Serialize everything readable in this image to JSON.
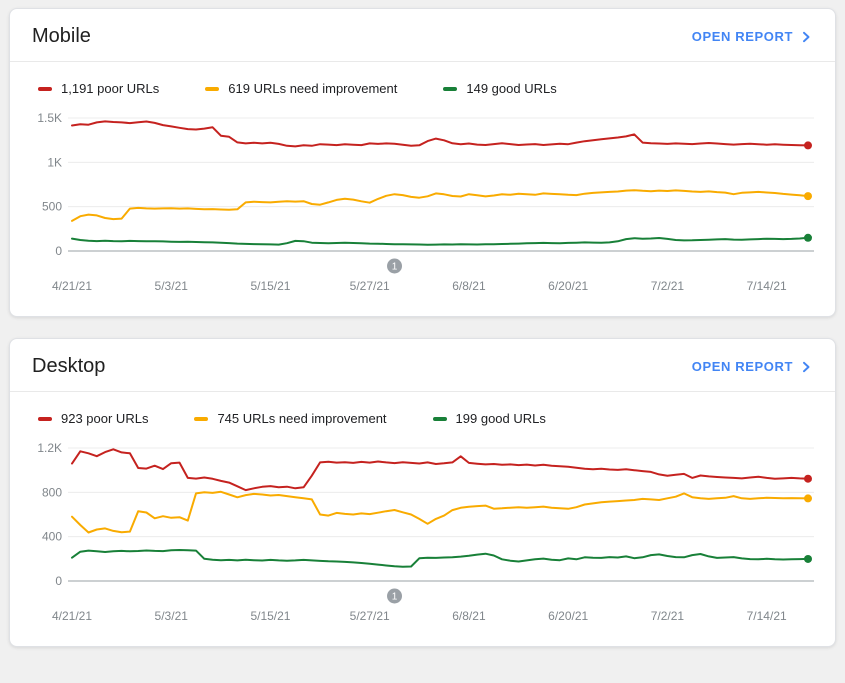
{
  "page": {
    "background": "#f0f0f0",
    "card_background": "#ffffff"
  },
  "colors": {
    "poor": "#c5221f",
    "needs_improvement": "#f9ab00",
    "good": "#188038",
    "link": "#4285f4",
    "axis_text": "#80868b",
    "gridline": "#ececec",
    "zero_line": "#9aa0a6",
    "badge": "#9aa0a6"
  },
  "cards": [
    {
      "title": "Mobile",
      "open_report_label": "OPEN REPORT",
      "legend": [
        {
          "label": "1,191 poor URLs",
          "color": "#c5221f"
        },
        {
          "label": "619 URLs need improvement",
          "color": "#f9ab00"
        },
        {
          "label": "149 good URLs",
          "color": "#188038"
        }
      ],
      "chart_data": {
        "type": "line",
        "x_start_date": "4/21/21",
        "x_end_date": "7/19/21",
        "x_ticks": [
          {
            "index": 0,
            "label": "4/21/21"
          },
          {
            "index": 12,
            "label": "5/3/21"
          },
          {
            "index": 24,
            "label": "5/15/21"
          },
          {
            "index": 36,
            "label": "5/27/21"
          },
          {
            "index": 48,
            "label": "6/8/21"
          },
          {
            "index": 60,
            "label": "6/20/21"
          },
          {
            "index": 72,
            "label": "7/2/21"
          },
          {
            "index": 84,
            "label": "7/14/21"
          }
        ],
        "y_ticks": [
          {
            "value": 1500,
            "label": "1.5K"
          },
          {
            "value": 1000,
            "label": "1K"
          },
          {
            "value": 500,
            "label": "500"
          },
          {
            "value": 0,
            "label": "0"
          }
        ],
        "ylim": [
          0,
          1500
        ],
        "grid": true,
        "annotation": {
          "index": 39,
          "label": "1"
        },
        "series": [
          {
            "name": "poor URLs",
            "current": 1191,
            "color": "#c5221f",
            "values": [
              1415,
              1430,
              1425,
              1450,
              1462,
              1455,
              1450,
              1443,
              1452,
              1460,
              1445,
              1420,
              1405,
              1390,
              1375,
              1370,
              1380,
              1395,
              1300,
              1288,
              1225,
              1213,
              1220,
              1214,
              1220,
              1208,
              1186,
              1180,
              1192,
              1186,
              1205,
              1200,
              1194,
              1205,
              1199,
              1194,
              1213,
              1208,
              1214,
              1209,
              1199,
              1186,
              1192,
              1240,
              1268,
              1248,
              1215,
              1205,
              1212,
              1200,
              1196,
              1206,
              1215,
              1206,
              1196,
              1201,
              1206,
              1196,
              1202,
              1210,
              1205,
              1222,
              1238,
              1250,
              1260,
              1270,
              1280,
              1292,
              1315,
              1222,
              1215,
              1212,
              1208,
              1214,
              1210,
              1206,
              1212,
              1218,
              1212,
              1206,
              1200,
              1206,
              1210,
              1204,
              1199,
              1203,
              1199,
              1195,
              1193,
              1191
            ]
          },
          {
            "name": "URLs need improvement",
            "current": 619,
            "color": "#f9ab00",
            "values": [
              340,
              392,
              410,
              402,
              372,
              360,
              365,
              478,
              486,
              480,
              478,
              481,
              483,
              478,
              480,
              475,
              470,
              472,
              468,
              465,
              470,
              548,
              556,
              552,
              548,
              556,
              561,
              557,
              562,
              530,
              522,
              548,
              576,
              590,
              580,
              560,
              545,
              588,
              622,
              641,
              630,
              610,
              601,
              617,
              650,
              640,
              620,
              615,
              641,
              628,
              616,
              626,
              641,
              634,
              645,
              639,
              634,
              650,
              644,
              639,
              634,
              630,
              646,
              655,
              661,
              666,
              671,
              681,
              686,
              679,
              674,
              681,
              677,
              683,
              678,
              671,
              667,
              672,
              664,
              659,
              641,
              656,
              661,
              666,
              660,
              654,
              644,
              636,
              629,
              619
            ]
          },
          {
            "name": "good URLs",
            "current": 149,
            "color": "#188038",
            "values": [
              140,
              124,
              115,
              112,
              115,
              112,
              111,
              114,
              112,
              111,
              110,
              108,
              105,
              103,
              104,
              101,
              99,
              97,
              94,
              89,
              84,
              80,
              78,
              76,
              74,
              72,
              88,
              114,
              111,
              94,
              90,
              88,
              90,
              92,
              90,
              87,
              84,
              82,
              79,
              77,
              75,
              74,
              73,
              71,
              72,
              74,
              73,
              75,
              74,
              73,
              75,
              77,
              79,
              81,
              84,
              87,
              89,
              91,
              89,
              87,
              91,
              94,
              97,
              95,
              94,
              97,
              109,
              134,
              144,
              139,
              141,
              147,
              137,
              124,
              119,
              121,
              124,
              127,
              131,
              134,
              129,
              127,
              131,
              134,
              139,
              137,
              134,
              137,
              141,
              149
            ]
          }
        ]
      }
    },
    {
      "title": "Desktop",
      "open_report_label": "OPEN REPORT",
      "legend": [
        {
          "label": "923 poor URLs",
          "color": "#c5221f"
        },
        {
          "label": "745 URLs need improvement",
          "color": "#f9ab00"
        },
        {
          "label": "199 good URLs",
          "color": "#188038"
        }
      ],
      "chart_data": {
        "type": "line",
        "x_start_date": "4/21/21",
        "x_end_date": "7/19/21",
        "x_ticks": [
          {
            "index": 0,
            "label": "4/21/21"
          },
          {
            "index": 12,
            "label": "5/3/21"
          },
          {
            "index": 24,
            "label": "5/15/21"
          },
          {
            "index": 36,
            "label": "5/27/21"
          },
          {
            "index": 48,
            "label": "6/8/21"
          },
          {
            "index": 60,
            "label": "6/20/21"
          },
          {
            "index": 72,
            "label": "7/2/21"
          },
          {
            "index": 84,
            "label": "7/14/21"
          }
        ],
        "y_ticks": [
          {
            "value": 1200,
            "label": "1.2K"
          },
          {
            "value": 800,
            "label": "800"
          },
          {
            "value": 400,
            "label": "400"
          },
          {
            "value": 0,
            "label": "0"
          }
        ],
        "ylim": [
          0,
          1300
        ],
        "grid": true,
        "annotation": {
          "index": 39,
          "label": "1"
        },
        "series": [
          {
            "name": "poor URLs",
            "current": 923,
            "color": "#c5221f",
            "values": [
              1060,
              1170,
              1152,
              1126,
              1163,
              1188,
              1160,
              1152,
              1020,
              1014,
              1040,
              1010,
              1063,
              1068,
              930,
              924,
              934,
              922,
              903,
              888,
              854,
              820,
              836,
              850,
              856,
              845,
              851,
              836,
              845,
              950,
              1070,
              1076,
              1068,
              1072,
              1066,
              1075,
              1068,
              1078,
              1070,
              1064,
              1072,
              1066,
              1060,
              1070,
              1056,
              1062,
              1070,
              1125,
              1066,
              1058,
              1052,
              1056,
              1048,
              1052,
              1046,
              1050,
              1042,
              1048,
              1040,
              1036,
              1030,
              1022,
              1012,
              1008,
              1012,
              1006,
              1002,
              1008,
              1000,
              992,
              984,
              962,
              950,
              958,
              966,
              930,
              952,
              944,
              938,
              934,
              930,
              926,
              934,
              940,
              930,
              922,
              926,
              930,
              926,
              923
            ]
          },
          {
            "name": "URLs need improvement",
            "current": 745,
            "color": "#f9ab00",
            "values": [
              580,
              505,
              438,
              465,
              475,
              452,
              440,
              446,
              630,
              618,
              566,
              585,
              570,
              576,
              545,
              790,
              800,
              795,
              805,
              780,
              755,
              775,
              786,
              780,
              771,
              776,
              766,
              756,
              746,
              736,
              600,
              590,
              614,
              605,
              600,
              610,
              604,
              616,
              630,
              641,
              620,
              600,
              560,
              516,
              560,
              590,
              640,
              660,
              670,
              676,
              680,
              652,
              656,
              661,
              666,
              660,
              666,
              671,
              661,
              656,
              651,
              666,
              690,
              700,
              710,
              716,
              721,
              726,
              731,
              741,
              736,
              731,
              746,
              761,
              790,
              756,
              746,
              741,
              746,
              751,
              766,
              746,
              741,
              746,
              751,
              749,
              746,
              748,
              746,
              745
            ]
          },
          {
            "name": "good URLs",
            "current": 199,
            "color": "#188038",
            "values": [
              210,
              264,
              274,
              269,
              262,
              268,
              272,
              268,
              271,
              275,
              272,
              270,
              277,
              280,
              278,
              274,
              200,
              192,
              188,
              190,
              186,
              192,
              188,
              185,
              190,
              186,
              183,
              186,
              190,
              186,
              181,
              178,
              176,
              172,
              168,
              162,
              155,
              148,
              140,
              133,
              129,
              131,
              205,
              210,
              208,
              212,
              215,
              220,
              228,
              238,
              246,
              230,
              196,
              183,
              176,
              186,
              196,
              202,
              192,
              188,
              204,
              196,
              214,
              210,
              208,
              216,
              212,
              222,
              206,
              214,
              234,
              240,
              226,
              216,
              214,
              234,
              244,
              222,
              208,
              212,
              216,
              204,
              198,
              196,
              200,
              196,
              194,
              196,
              198,
              199
            ]
          }
        ]
      }
    }
  ]
}
